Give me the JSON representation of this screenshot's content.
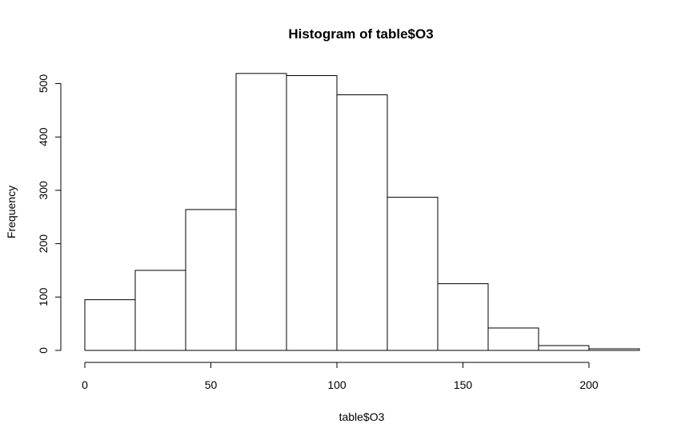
{
  "chart_data": {
    "type": "bar",
    "subtype": "histogram",
    "title": "Histogram of table$O3",
    "xlabel": "table$O3",
    "ylabel": "Frequency",
    "bins": [
      {
        "start": 0,
        "end": 20,
        "count": 95
      },
      {
        "start": 20,
        "end": 40,
        "count": 150
      },
      {
        "start": 40,
        "end": 60,
        "count": 264
      },
      {
        "start": 60,
        "end": 80,
        "count": 519
      },
      {
        "start": 80,
        "end": 100,
        "count": 515
      },
      {
        "start": 100,
        "end": 120,
        "count": 479
      },
      {
        "start": 120,
        "end": 140,
        "count": 287
      },
      {
        "start": 140,
        "end": 160,
        "count": 125
      },
      {
        "start": 160,
        "end": 180,
        "count": 42
      },
      {
        "start": 180,
        "end": 200,
        "count": 9
      },
      {
        "start": 200,
        "end": 220,
        "count": 3
      }
    ],
    "xlim": [
      0,
      220
    ],
    "ylim": [
      0,
      520
    ],
    "xticks": [
      0,
      50,
      100,
      150,
      200
    ],
    "yticks": [
      0,
      100,
      200,
      300,
      400,
      500
    ],
    "bar_fill": "#ffffff",
    "bar_stroke": "#000000",
    "grid": false,
    "legend": "none"
  }
}
